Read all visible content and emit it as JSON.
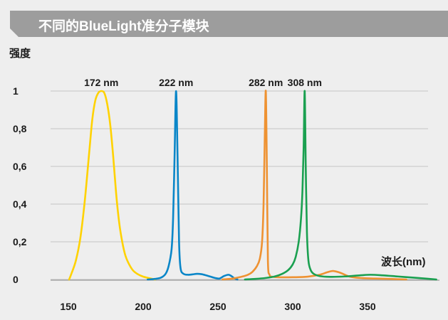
{
  "header": {
    "title": "不同的BlueLight准分子模块"
  },
  "chart_data": {
    "type": "line",
    "ylabel": "强度",
    "xlabel": "波长(nm)",
    "xlim": [
      140,
      395
    ],
    "ylim": [
      0,
      1
    ],
    "xticks": [
      "150",
      "200",
      "250",
      "300",
      "350"
    ],
    "yticks": [
      "0",
      "0,2",
      "0,4",
      "0,6",
      "0,8",
      "1"
    ],
    "grid": true,
    "annotations": [
      "172 nm",
      "222 nm",
      "282 nm",
      "308 nm"
    ],
    "series": [
      {
        "color": "#ffd200",
        "x": [
          150.5,
          152,
          155,
          158,
          161,
          164,
          166,
          168,
          170,
          172,
          174,
          176,
          178,
          180,
          182,
          184,
          186,
          188,
          190,
          193,
          196,
          200,
          205,
          208
        ],
        "y": [
          0.0,
          0.03,
          0.1,
          0.22,
          0.42,
          0.68,
          0.85,
          0.95,
          0.99,
          1.0,
          0.99,
          0.93,
          0.82,
          0.65,
          0.45,
          0.3,
          0.2,
          0.13,
          0.09,
          0.05,
          0.03,
          0.015,
          0.005,
          0.0
        ]
      },
      {
        "color": "#0a86c8",
        "x": [
          203,
          208,
          212,
          215,
          217,
          219,
          220,
          221,
          222,
          223,
          224,
          225,
          227,
          230,
          233,
          236,
          239,
          242,
          245,
          248,
          251,
          254,
          257,
          259,
          261,
          263
        ],
        "y": [
          0.0,
          0.003,
          0.01,
          0.03,
          0.07,
          0.16,
          0.32,
          0.65,
          1.0,
          0.65,
          0.2,
          0.06,
          0.03,
          0.025,
          0.027,
          0.03,
          0.028,
          0.022,
          0.015,
          0.008,
          0.005,
          0.018,
          0.025,
          0.018,
          0.006,
          0.0
        ]
      },
      {
        "color": "#ee9232",
        "x": [
          253,
          258,
          262,
          266,
          270,
          273,
          276,
          278,
          279.5,
          280.5,
          281.3,
          282,
          282.7,
          283.4,
          284.5,
          286,
          290,
          300,
          310,
          318,
          323,
          327,
          332,
          338,
          345,
          355,
          365,
          376
        ],
        "y": [
          0.0,
          0.003,
          0.008,
          0.015,
          0.025,
          0.04,
          0.07,
          0.11,
          0.2,
          0.4,
          0.75,
          1.0,
          0.6,
          0.1,
          0.025,
          0.015,
          0.012,
          0.012,
          0.015,
          0.025,
          0.038,
          0.045,
          0.035,
          0.015,
          0.008,
          0.005,
          0.003,
          0.0
        ]
      },
      {
        "color": "#1aa050",
        "x": [
          268,
          275,
          282,
          288,
          293,
          297,
          300,
          302,
          304,
          305.5,
          306.5,
          307.3,
          308,
          308.7,
          309.5,
          310.5,
          312,
          314,
          318,
          325,
          335,
          345,
          352,
          360,
          370,
          380,
          390,
          396
        ],
        "y": [
          0.0,
          0.003,
          0.008,
          0.016,
          0.03,
          0.05,
          0.08,
          0.12,
          0.2,
          0.32,
          0.47,
          0.7,
          1.0,
          0.6,
          0.25,
          0.1,
          0.05,
          0.03,
          0.018,
          0.014,
          0.016,
          0.022,
          0.025,
          0.022,
          0.016,
          0.01,
          0.004,
          0.0
        ]
      }
    ]
  }
}
